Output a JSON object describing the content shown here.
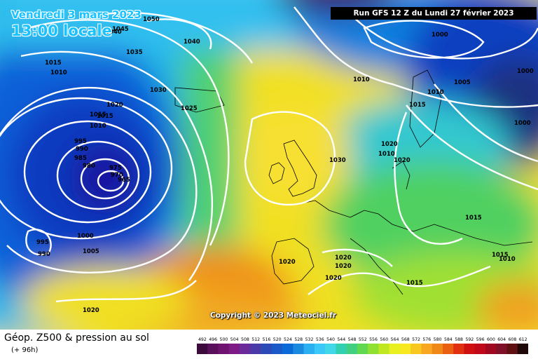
{
  "header": {
    "date": "Vendredi 3 mars 2023",
    "local_time": "13:00 locale",
    "run_info": "Run GFS 12 Z du Lundi 27 février 2023"
  },
  "copyright": "Copyright © 2023 Meteociel.fr",
  "footer": {
    "title": "Géop. Z500 & pression au sol",
    "subtitle": "(+ 96h)"
  },
  "color_scale": {
    "labels": [
      "492",
      "496",
      "500",
      "504",
      "508",
      "512",
      "516",
      "520",
      "524",
      "528",
      "532",
      "536",
      "540",
      "544",
      "548",
      "552",
      "556",
      "560",
      "564",
      "568",
      "572",
      "576",
      "580",
      "584",
      "588",
      "592",
      "596",
      "600",
      "604",
      "608",
      "612"
    ],
    "colors": [
      "#3d0a3d",
      "#5a0f5a",
      "#6e1470",
      "#7d1a86",
      "#6a2a9a",
      "#4a3aa8",
      "#2a4ab8",
      "#1a5ac8",
      "#0a6ad8",
      "#1a8ae0",
      "#2ab0f0",
      "#3ac8f8",
      "#40d8e8",
      "#30d0b0",
      "#40d080",
      "#60d850",
      "#90e030",
      "#c0e820",
      "#e8f020",
      "#f8e820",
      "#f8c820",
      "#f8a820",
      "#f08818",
      "#e86010",
      "#e03010",
      "#d01010",
      "#c00818",
      "#a00820",
      "#801028",
      "#601010",
      "#200808"
    ]
  },
  "isobar_labels": [
    {
      "text": "1050"
    },
    {
      "text": "1045"
    },
    {
      "text": "1040"
    },
    {
      "text": "1040"
    },
    {
      "text": "1035"
    },
    {
      "text": "1030"
    },
    {
      "text": "1025"
    },
    {
      "text": "1020"
    },
    {
      "text": "1015"
    },
    {
      "text": "1015"
    },
    {
      "text": "1010"
    },
    {
      "text": "1010"
    },
    {
      "text": "995"
    },
    {
      "text": "990"
    },
    {
      "text": "985"
    },
    {
      "text": "980"
    },
    {
      "text": "975"
    },
    {
      "text": "970"
    },
    {
      "text": "965"
    },
    {
      "text": "1000"
    },
    {
      "text": "1005"
    },
    {
      "text": "995"
    },
    {
      "text": "990"
    },
    {
      "text": "1020"
    },
    {
      "text": "1030"
    },
    {
      "text": "1020"
    },
    {
      "text": "1020"
    },
    {
      "text": "1020"
    },
    {
      "text": "1020"
    },
    {
      "text": "1020"
    },
    {
      "text": "1015"
    },
    {
      "text": "1015"
    },
    {
      "text": "1010"
    },
    {
      "text": "1015"
    },
    {
      "text": "1010"
    },
    {
      "text": "1005"
    },
    {
      "text": "1000"
    },
    {
      "text": "1000"
    },
    {
      "text": "1000"
    },
    {
      "text": "1010"
    },
    {
      "text": "1015"
    },
    {
      "text": "1020"
    },
    {
      "text": "1015"
    },
    {
      "text": "1010"
    }
  ]
}
